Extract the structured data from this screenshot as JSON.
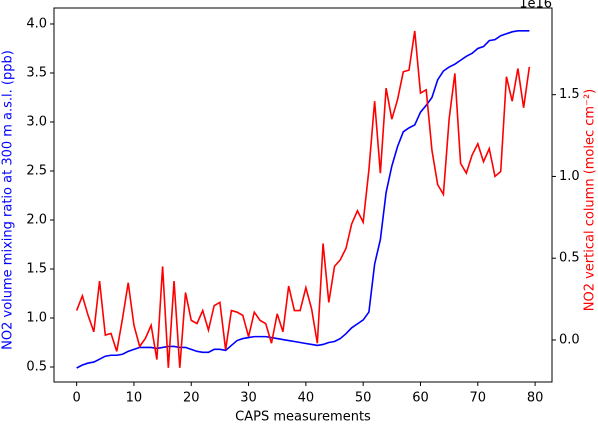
{
  "chart_data": {
    "type": "line",
    "xlabel": "CAPS measurements",
    "ylabel": "NO2 volume mixing ratio at 300 m a.s.l. (ppb)",
    "y2label": "NO2 vertical column (molec cm⁻²)",
    "y2offset": "1e16",
    "x": [
      0,
      1,
      2,
      3,
      4,
      5,
      6,
      7,
      8,
      9,
      10,
      11,
      12,
      13,
      14,
      15,
      16,
      17,
      18,
      19,
      20,
      21,
      22,
      23,
      24,
      25,
      26,
      27,
      28,
      29,
      30,
      31,
      32,
      33,
      34,
      35,
      36,
      37,
      38,
      39,
      40,
      41,
      42,
      43,
      44,
      45,
      46,
      47,
      48,
      49,
      50,
      51,
      52,
      53,
      54,
      55,
      56,
      57,
      58,
      59,
      60,
      61,
      62,
      63,
      64,
      65,
      66,
      67,
      68,
      69,
      70,
      71,
      72,
      73,
      74,
      75,
      76,
      77,
      78,
      79
    ],
    "series": [
      {
        "color": "#0000ff",
        "axis": "y",
        "values": [
          0.49,
          0.52,
          0.54,
          0.55,
          0.58,
          0.61,
          0.62,
          0.62,
          0.63,
          0.66,
          0.68,
          0.7,
          0.7,
          0.7,
          0.69,
          0.7,
          0.71,
          0.71,
          0.7,
          0.7,
          0.68,
          0.66,
          0.65,
          0.65,
          0.68,
          0.68,
          0.67,
          0.72,
          0.77,
          0.79,
          0.8,
          0.81,
          0.81,
          0.81,
          0.8,
          0.79,
          0.78,
          0.77,
          0.76,
          0.75,
          0.74,
          0.73,
          0.72,
          0.73,
          0.75,
          0.76,
          0.79,
          0.84,
          0.9,
          0.94,
          0.98,
          1.06,
          1.55,
          1.8,
          2.28,
          2.55,
          2.75,
          2.9,
          2.94,
          2.97,
          3.1,
          3.17,
          3.25,
          3.43,
          3.52,
          3.56,
          3.59,
          3.63,
          3.67,
          3.7,
          3.75,
          3.77,
          3.83,
          3.84,
          3.88,
          3.9,
          3.92,
          3.93,
          3.93,
          3.93
        ]
      },
      {
        "color": "#ff0000",
        "axis": "y2",
        "values": [
          0.18,
          0.27,
          0.15,
          0.05,
          0.36,
          0.03,
          0.04,
          -0.07,
          0.13,
          0.35,
          0.09,
          -0.04,
          0.01,
          0.09,
          -0.12,
          0.45,
          -0.17,
          0.36,
          -0.17,
          0.29,
          0.12,
          0.1,
          0.18,
          0.06,
          0.21,
          0.23,
          -0.06,
          0.18,
          0.17,
          0.15,
          0.02,
          0.17,
          0.12,
          0.1,
          -0.02,
          0.16,
          0.05,
          0.33,
          0.18,
          0.18,
          0.32,
          0.19,
          -0.02,
          0.59,
          0.23,
          0.45,
          0.49,
          0.56,
          0.71,
          0.79,
          0.72,
          1.04,
          1.46,
          1.02,
          1.54,
          1.35,
          1.47,
          1.64,
          1.65,
          1.89,
          1.51,
          1.53,
          1.16,
          0.95,
          0.89,
          1.35,
          1.63,
          1.08,
          1.02,
          1.13,
          1.2,
          1.09,
          1.17,
          1.0,
          1.03,
          1.61,
          1.46,
          1.66,
          1.42,
          1.67
        ]
      }
    ],
    "xlim": [
      -3.95,
      82.95
    ],
    "xticks": [
      0,
      10,
      20,
      30,
      40,
      50,
      60,
      70,
      80
    ],
    "ylim": [
      0.347,
      4.163
    ],
    "yticks": [
      0.5,
      {
        "value": 1,
        "label": "1.0"
      },
      1.5,
      {
        "value": 2,
        "label": "2.0"
      },
      2.5,
      {
        "value": 3,
        "label": "3.0"
      },
      3.5,
      {
        "value": 4,
        "label": "4.0"
      }
    ],
    "y2lim": [
      -0.257,
      2.03
    ],
    "y2ticks": [
      {
        "value": 0,
        "label": "0.0"
      },
      0.5,
      {
        "value": 1,
        "label": "1.0"
      },
      1.5
    ]
  }
}
